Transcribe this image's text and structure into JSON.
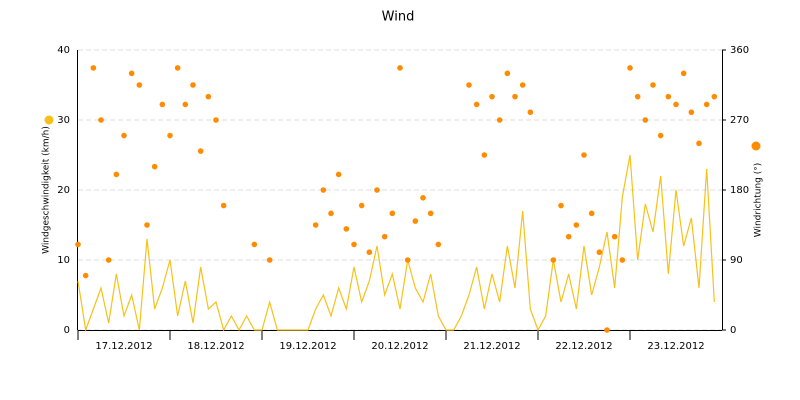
{
  "chart_data": {
    "type": "line-scatter",
    "title": "Wind",
    "x": [
      17.0,
      17.0833,
      17.1667,
      17.25,
      17.3333,
      17.4167,
      17.5,
      17.5833,
      17.6667,
      17.75,
      17.8333,
      17.9167,
      18.0,
      18.0833,
      18.1667,
      18.25,
      18.3333,
      18.4167,
      18.5,
      18.5833,
      18.6667,
      18.75,
      18.8333,
      18.9167,
      19.0,
      19.0833,
      19.1667,
      19.25,
      19.3333,
      19.4167,
      19.5,
      19.5833,
      19.6667,
      19.75,
      19.8333,
      19.9167,
      20.0,
      20.0833,
      20.1667,
      20.25,
      20.3333,
      20.4167,
      20.5,
      20.5833,
      20.6667,
      20.75,
      20.8333,
      20.9167,
      21.0,
      21.0833,
      21.1667,
      21.25,
      21.3333,
      21.4167,
      21.5,
      21.5833,
      21.6667,
      21.75,
      21.8333,
      21.9167,
      22.0,
      22.0833,
      22.1667,
      22.25,
      22.3333,
      22.4167,
      22.5,
      22.5833,
      22.6667,
      22.75,
      22.8333,
      22.9167,
      23.0,
      23.0833,
      23.1667,
      23.25,
      23.3333,
      23.4167,
      23.5,
      23.5833,
      23.6667,
      23.75,
      23.8333,
      23.9167
    ],
    "xlim": [
      17,
      24
    ],
    "xticks": [
      {
        "value": 17.5,
        "label": "17.12.2012"
      },
      {
        "value": 18.5,
        "label": "18.12.2012"
      },
      {
        "value": 19.5,
        "label": "19.12.2012"
      },
      {
        "value": 20.5,
        "label": "20.12.2012"
      },
      {
        "value": 21.5,
        "label": "21.12.2012"
      },
      {
        "value": 22.5,
        "label": "22.12.2012"
      },
      {
        "value": 23.5,
        "label": "23.12.2012"
      }
    ],
    "ylim": [
      0,
      40
    ],
    "yticks": [
      0,
      10,
      20,
      30,
      40
    ],
    "y2lim": [
      0,
      360
    ],
    "y2ticks": [
      0,
      90,
      180,
      270,
      360
    ],
    "grid": true,
    "series": [
      {
        "name": "Windgeschwindigkeit (km/h)",
        "color": "#f7c11a",
        "values": [
          7,
          0,
          3,
          6,
          1,
          8,
          2,
          5,
          0,
          13,
          3,
          6,
          10,
          2,
          7,
          1,
          9,
          3,
          4,
          0,
          2,
          0,
          2,
          0,
          0,
          4,
          0,
          0,
          0,
          0,
          0,
          3,
          5,
          2,
          6,
          3,
          9,
          4,
          7,
          12,
          5,
          8,
          3,
          10,
          6,
          4,
          8,
          2,
          0,
          0,
          2,
          5,
          9,
          3,
          8,
          4,
          12,
          6,
          17,
          3,
          0,
          2,
          10,
          4,
          8,
          3,
          12,
          5,
          9,
          14,
          6,
          19,
          25,
          10,
          18,
          14,
          22,
          8,
          20,
          12,
          16,
          6,
          23,
          4
        ]
      },
      {
        "name": "Windrichtung (°)",
        "color": "#ff8c00",
        "axis": "y2",
        "values": [
          110,
          70,
          337,
          270,
          90,
          200,
          250,
          330,
          315,
          135,
          210,
          290,
          250,
          337,
          290,
          315,
          230,
          300,
          270,
          160,
          null,
          null,
          null,
          110,
          null,
          90,
          null,
          null,
          null,
          null,
          null,
          135,
          180,
          150,
          200,
          130,
          110,
          160,
          100,
          180,
          120,
          150,
          337,
          90,
          140,
          170,
          150,
          110,
          null,
          null,
          null,
          315,
          290,
          225,
          300,
          270,
          330,
          300,
          315,
          280,
          null,
          null,
          90,
          160,
          120,
          135,
          225,
          150,
          100,
          0,
          120,
          90,
          337,
          300,
          270,
          315,
          250,
          300,
          290,
          330,
          280,
          240,
          290,
          300
        ]
      }
    ]
  }
}
